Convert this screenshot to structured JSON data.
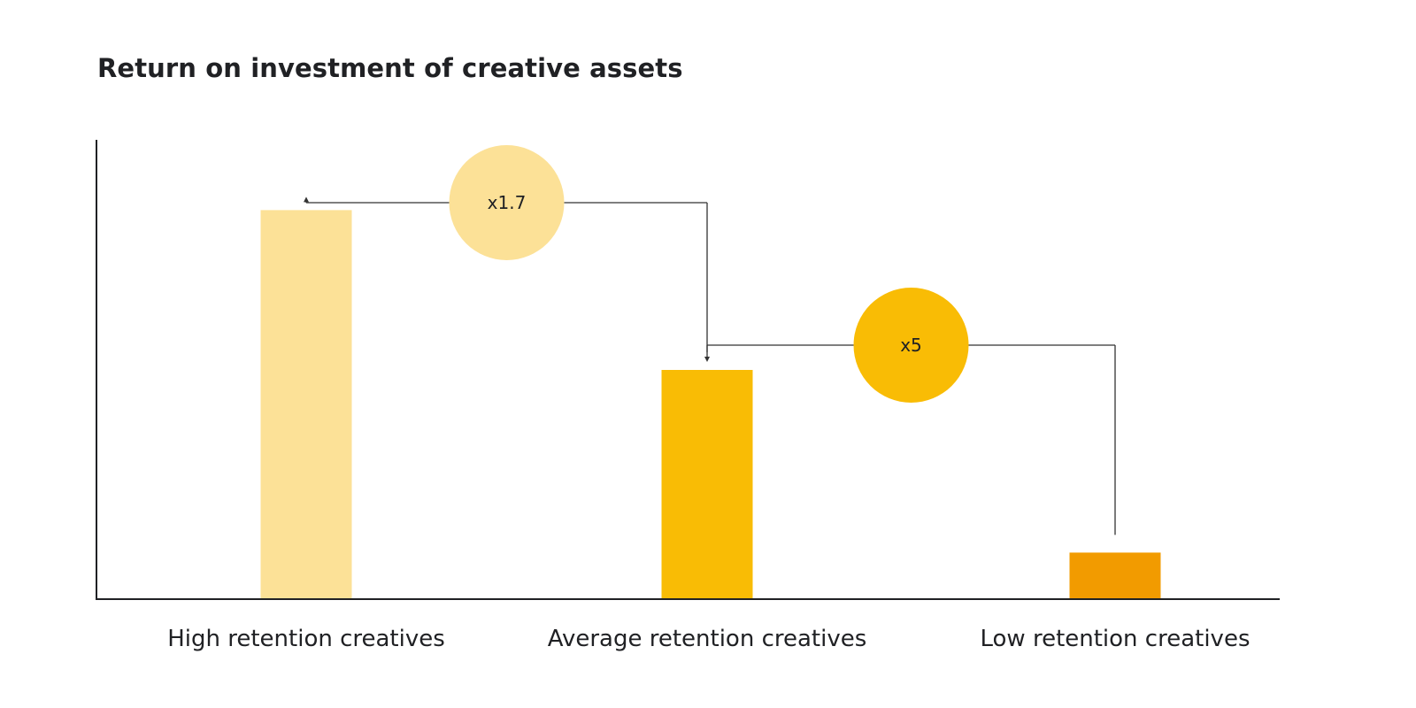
{
  "chart_data": {
    "type": "bar",
    "title": "Return on investment of creative assets",
    "xlabel": "",
    "ylabel": "",
    "ylim": [
      0,
      10
    ],
    "grid": false,
    "categories": [
      "High retention creatives",
      "Average retention creatives",
      "Low retention creatives"
    ],
    "values": [
      8.5,
      5.0,
      1.0
    ],
    "colors": [
      "#FCE197",
      "#F9BC05",
      "#F29B00"
    ],
    "annotations": [
      {
        "label": "x1.7",
        "from": "Average retention creatives",
        "to": "High retention creatives",
        "color": "#FCE197"
      },
      {
        "label": "x5",
        "from": "Low retention creatives",
        "to": "Average retention creatives",
        "color": "#F9BC05"
      }
    ]
  }
}
